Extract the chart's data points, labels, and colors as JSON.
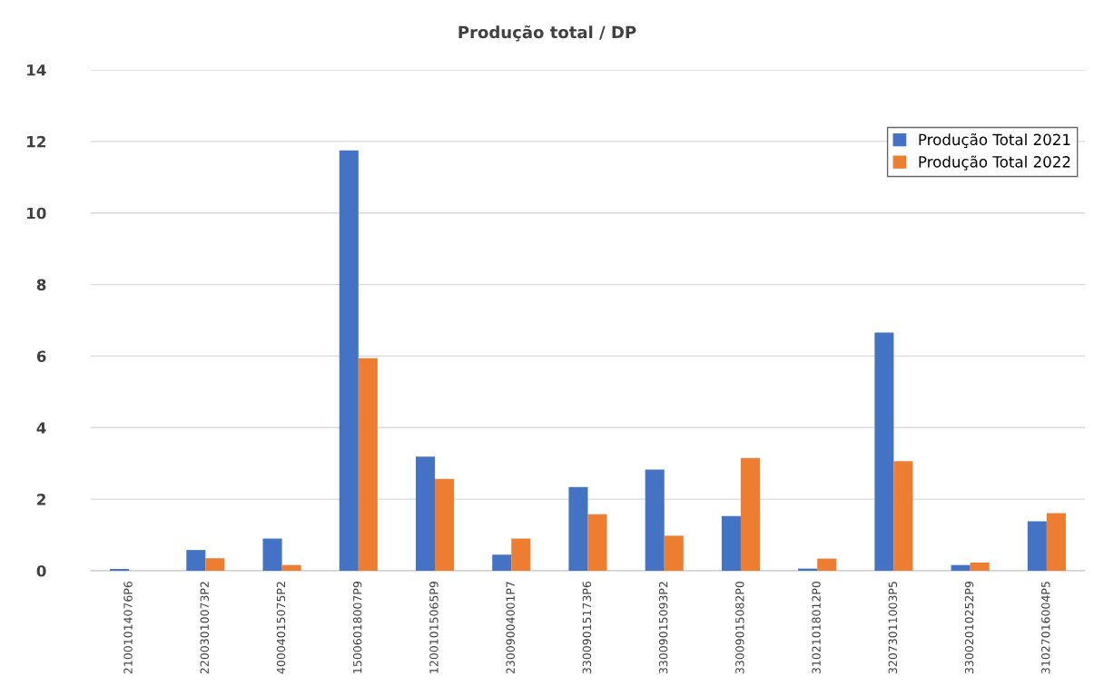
{
  "chart_data": {
    "type": "bar",
    "title": "Produção total / DP",
    "categories": [
      "21001014076P6",
      "22003010073P2",
      "40004015075P2",
      "15006018007P9",
      "12001015065P9",
      "23009004001P7",
      "33009015173P6",
      "33009015093P2",
      "33009015082P0",
      "31021018012P0",
      "32073011003P5",
      "33002010252P9",
      "31027016004P5"
    ],
    "series": [
      {
        "name": "Produção Total 2021",
        "color": "#4472c4",
        "values": [
          0.05,
          0.58,
          0.9,
          11.75,
          3.19,
          0.45,
          2.34,
          2.83,
          1.53,
          0.06,
          6.66,
          0.16,
          1.38
        ]
      },
      {
        "name": "Produção Total 2022",
        "color": "#ed7d31",
        "values": [
          0,
          0.35,
          0.16,
          5.94,
          2.57,
          0.9,
          1.58,
          0.98,
          3.15,
          0.34,
          3.06,
          0.23,
          1.61
        ]
      }
    ],
    "ylim": [
      0,
      14
    ],
    "yticks": [
      0,
      2,
      4,
      6,
      8,
      10,
      12,
      14
    ],
    "grid": "y",
    "legend": "top right"
  }
}
